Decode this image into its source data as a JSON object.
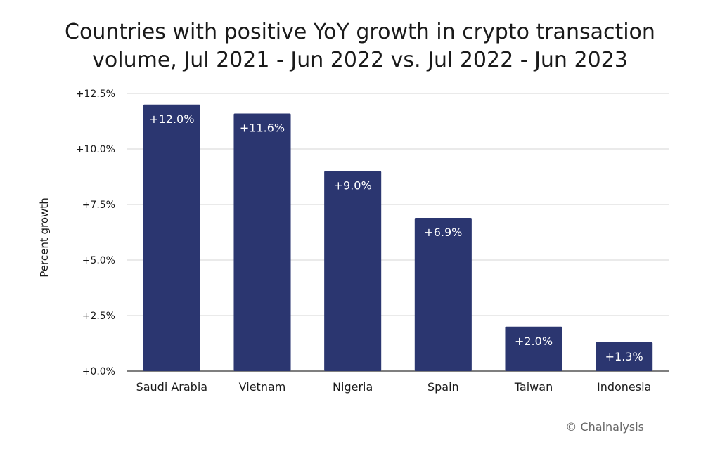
{
  "chart_data": {
    "type": "bar",
    "title": "Countries with positive YoY growth in crypto transaction volume, Jul 2021 - Jun 2022 vs. Jul 2022 - Jun 2023",
    "xlabel": "",
    "ylabel": "Percent growth",
    "categories": [
      "Saudi Arabia",
      "Vietnam",
      "Nigeria",
      "Spain",
      "Taiwan",
      "Indonesia"
    ],
    "values": [
      12.0,
      11.6,
      9.0,
      6.9,
      2.0,
      1.3
    ],
    "data_labels": [
      "+12.0%",
      "+11.6%",
      "+9.0%",
      "+6.9%",
      "+2.0%",
      "+1.3%"
    ],
    "ylim": [
      0,
      12.5
    ],
    "yticks": [
      0,
      2.5,
      5.0,
      7.5,
      10.0,
      12.5
    ],
    "ytick_labels": [
      "+0.0%",
      "+2.5%",
      "+5.0%",
      "+7.5%",
      "+10.0%",
      "+12.5%"
    ],
    "grid": true,
    "legend": "none",
    "bar_color": "#2b3670",
    "grid_color": "#d4d4d4",
    "axis_color": "#555555"
  },
  "source": "© Chainalysis"
}
